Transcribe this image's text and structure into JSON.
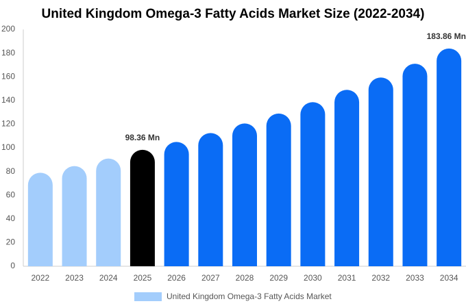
{
  "chart_data": {
    "type": "bar",
    "title": "United Kingdom Omega-3 Fatty Acids Market Size (2022-2034)",
    "categories": [
      "2022",
      "2023",
      "2024",
      "2025",
      "2026",
      "2027",
      "2028",
      "2029",
      "2030",
      "2031",
      "2032",
      "2033",
      "2034"
    ],
    "series": [
      {
        "name": "United Kingdom Omega-3 Fatty Acids Market",
        "color": "#a3cdfc",
        "colors": [
          "#a3cdfc",
          "#a3cdfc",
          "#a3cdfc",
          "#000000",
          "#0a6cf5",
          "#0a6cf5",
          "#0a6cf5",
          "#0a6cf5",
          "#0a6cf5",
          "#0a6cf5",
          "#0a6cf5",
          "#0a6cf5",
          "#0a6cf5"
        ],
        "values": [
          79,
          84.6,
          91,
          98.36,
          105,
          112.5,
          120.6,
          129,
          138.6,
          149,
          159.4,
          171,
          183.86
        ],
        "value_labels": [
          null,
          null,
          null,
          "98.36 Mn",
          null,
          null,
          null,
          null,
          null,
          null,
          null,
          null,
          "183.86 Mn"
        ]
      }
    ],
    "ylim": [
      0,
      200
    ],
    "yticks": [
      0,
      20,
      40,
      60,
      80,
      100,
      120,
      140,
      160,
      180,
      200
    ],
    "grid": false,
    "legend": "bottom"
  }
}
